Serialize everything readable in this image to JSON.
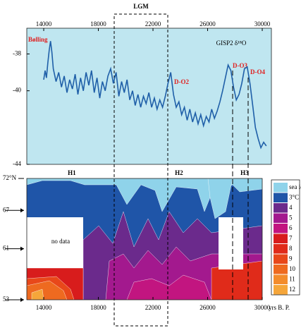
{
  "chart_data": [
    {
      "type": "line",
      "title": "GISP2 δ¹⁸O",
      "period_label": "LGM",
      "annotations": [
        "Bølling",
        "D-O2",
        "D-O3",
        "D-O4"
      ],
      "xlim": [
        12760,
        30670
      ],
      "xticks": [
        14000,
        18000,
        22000,
        26000,
        30000
      ],
      "ylim": [
        -36.6,
        -44
      ],
      "yticks": [
        -38,
        -40,
        -44
      ],
      "series": [
        {
          "color": "#1f5fa8",
          "x": [
            14000,
            14100,
            14200,
            14300,
            14400,
            14500,
            14600,
            14700,
            14900,
            15100,
            15300,
            15500,
            15700,
            15900,
            16100,
            16300,
            16500,
            16700,
            16900,
            17100,
            17300,
            17500,
            17700,
            17900,
            18100,
            18300,
            18500,
            18700,
            18900,
            19100,
            19300,
            19500,
            19700,
            19900,
            20100,
            20300,
            20500,
            20700,
            20900,
            21100,
            21300,
            21500,
            21700,
            21900,
            22100,
            22300,
            22500,
            22700,
            22900,
            23100,
            23300,
            23500,
            23700,
            23900,
            24100,
            24300,
            24500,
            24700,
            24900,
            25100,
            25300,
            25500,
            25700,
            25900,
            26100,
            26300,
            26500,
            26700,
            26900,
            27100,
            27300,
            27500,
            27700,
            27900,
            28100,
            28300,
            28500,
            28700,
            28900,
            29100,
            29300,
            29500,
            29700,
            29900,
            30100,
            30300
          ],
          "values": [
            -39.4,
            -38.9,
            -39.3,
            -38.5,
            -37.8,
            -37.3,
            -37.9,
            -38.8,
            -39.5,
            -39.0,
            -39.8,
            -39.2,
            -40.1,
            -39.4,
            -39.9,
            -39.1,
            -40.2,
            -39.3,
            -40.0,
            -39.0,
            -39.7,
            -38.9,
            -40.1,
            -39.3,
            -40.4,
            -39.5,
            -40.0,
            -39.2,
            -38.8,
            -39.6,
            -39.0,
            -40.3,
            -39.5,
            -40.1,
            -39.4,
            -40.5,
            -40.0,
            -40.8,
            -40.2,
            -40.9,
            -40.3,
            -40.7,
            -40.1,
            -40.9,
            -40.4,
            -41.0,
            -40.5,
            -40.9,
            -40.3,
            -39.6,
            -39.0,
            -40.2,
            -40.9,
            -40.6,
            -41.3,
            -40.9,
            -41.6,
            -41.0,
            -41.7,
            -41.2,
            -41.8,
            -41.3,
            -41.9,
            -41.4,
            -41.7,
            -41.0,
            -41.5,
            -41.1,
            -40.6,
            -40.0,
            -39.3,
            -38.6,
            -38.9,
            -39.8,
            -40.5,
            -40.2,
            -39.6,
            -38.8,
            -38.7,
            -39.6,
            -40.8,
            -42.0,
            -42.6,
            -43.1,
            -42.8,
            -43.0
          ]
        }
      ]
    },
    {
      "type": "contour",
      "x_label": "yrs B. P.",
      "xlim": [
        12760,
        30670
      ],
      "xticks": [
        14000,
        18000,
        22000,
        26000,
        30000
      ],
      "ylim": [
        53,
        72
      ],
      "yticks": [
        {
          "value": 72,
          "label": "72°N"
        },
        67,
        61,
        53
      ],
      "events": [
        "H1",
        "H2",
        "H3"
      ],
      "no_data_label": "no data",
      "legend": [
        "sea ice",
        "3°C",
        "4",
        "5",
        "6",
        "7",
        "8",
        "9",
        "10",
        "11",
        "12"
      ],
      "colors": [
        "#8fd3ea",
        "#1f55a8",
        "#6b2a8c",
        "#a3198e",
        "#c21580",
        "#d81c1c",
        "#e02b1a",
        "#e8481a",
        "#ee6a20",
        "#f38c2c",
        "#f5a63a"
      ]
    }
  ]
}
